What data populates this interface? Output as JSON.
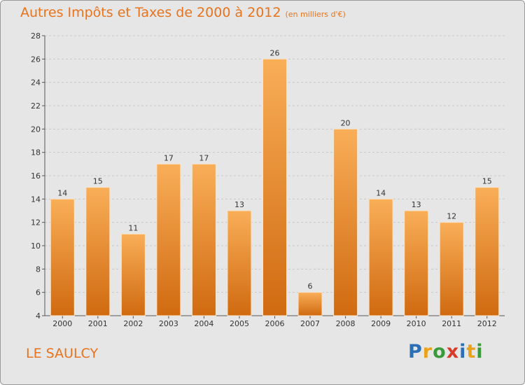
{
  "title": "Autres Impôts et Taxes de 2000 à 2012",
  "unit_note": "(en milliers d'€)",
  "location": "LE SAULCY",
  "logo": {
    "text": "Proxiti",
    "letters": [
      {
        "ch": "P",
        "color": "#2b6fb6"
      },
      {
        "ch": "r",
        "color": "#e8a21c"
      },
      {
        "ch": "o",
        "color": "#3a9a3a"
      },
      {
        "ch": "x",
        "color": "#d93a2a"
      },
      {
        "ch": "i",
        "color": "#2b6fb6"
      },
      {
        "ch": "t",
        "color": "#e8a21c"
      },
      {
        "ch": "i",
        "color": "#3a9a3a"
      }
    ]
  },
  "colors": {
    "accent": "#e8731c",
    "bar_light": "#f7a954",
    "bar_dark": "#d36d12",
    "bar_edge": "#ffffff"
  },
  "chart_data": {
    "type": "bar",
    "categories": [
      "2000",
      "2001",
      "2002",
      "2003",
      "2004",
      "2005",
      "2006",
      "2007",
      "2008",
      "2009",
      "2010",
      "2011",
      "2012"
    ],
    "values": [
      14,
      15,
      11,
      17,
      17,
      13,
      26,
      6,
      20,
      14,
      13,
      12,
      15
    ],
    "ylim": [
      4,
      28
    ],
    "yticks": [
      4,
      6,
      8,
      10,
      12,
      14,
      16,
      18,
      20,
      22,
      24,
      26,
      28
    ],
    "grid": true,
    "show_data_labels": true
  }
}
